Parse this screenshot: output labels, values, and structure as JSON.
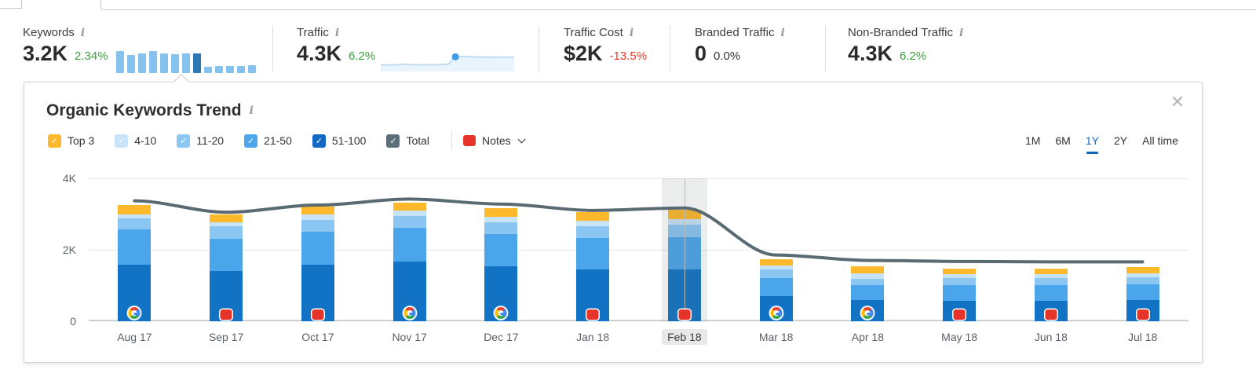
{
  "icons": {
    "info": "i",
    "check": "✓",
    "close": "✕"
  },
  "metrics": [
    {
      "label": "Keywords",
      "value": "3.2K",
      "delta": "2.34%",
      "delta_color": "green"
    },
    {
      "label": "Traffic",
      "value": "4.3K",
      "delta": "6.2%",
      "delta_color": "green"
    },
    {
      "label": "Traffic Cost",
      "value": "$2K",
      "delta": "-13.5%",
      "delta_color": "red"
    },
    {
      "label": "Branded Traffic",
      "value": "0",
      "delta": "0.0%",
      "delta_color": "neutral"
    },
    {
      "label": "Non-Branded Traffic",
      "value": "4.3K",
      "delta": "6.2%",
      "delta_color": "green"
    }
  ],
  "keywords_sparkline": {
    "values": [
      28,
      23,
      25,
      28,
      25,
      24,
      25,
      25,
      8,
      9,
      9,
      9,
      10
    ],
    "selected_index": 7,
    "bar_color": "#85C3EE",
    "selected_color": "#2E77B5"
  },
  "traffic_sparkline": {
    "points": [
      [
        0,
        0.25
      ],
      [
        0.1,
        0.24
      ],
      [
        0.18,
        0.28
      ],
      [
        0.26,
        0.25
      ],
      [
        0.44,
        0.26
      ],
      [
        0.5,
        0.28
      ],
      [
        0.56,
        0.64
      ],
      [
        0.62,
        0.66
      ],
      [
        0.72,
        0.63
      ],
      [
        1,
        0.62
      ]
    ],
    "dot": [
      0.56,
      0.64
    ],
    "line_color": "#BFDCF3",
    "fill_color": "#E9F4FC",
    "dot_color": "#3E9BE9"
  },
  "panel": {
    "title": "Organic Keywords Trend",
    "legend": [
      {
        "label": "Top 3",
        "color": "#FDB82C",
        "checked": true
      },
      {
        "label": "4-10",
        "color": "#C9E4F8",
        "checked": true
      },
      {
        "label": "11-20",
        "color": "#8BC7F0",
        "checked": true
      },
      {
        "label": "21-50",
        "color": "#4DA6EC",
        "checked": true
      },
      {
        "label": "51-100",
        "color": "#1268C3",
        "checked": true
      },
      {
        "label": "Total",
        "color": "#5C6E77",
        "checked": true
      }
    ],
    "notes": {
      "label": "Notes"
    },
    "ranges": [
      {
        "label": "1M",
        "active": false
      },
      {
        "label": "6M",
        "active": false
      },
      {
        "label": "1Y",
        "active": true
      },
      {
        "label": "2Y",
        "active": false
      },
      {
        "label": "All time",
        "active": false
      }
    ]
  },
  "chart_data": {
    "type": "bar",
    "stacked": true,
    "title": "Organic Keywords Trend",
    "categories": [
      "Aug 17",
      "Sep 17",
      "Oct 17",
      "Nov 17",
      "Dec 17",
      "Jan 18",
      "Feb 18",
      "Mar 18",
      "Apr 18",
      "May 18",
      "Jun 18",
      "Jul 18"
    ],
    "series": [
      {
        "name": "51-100",
        "color": "#1273C4",
        "values": [
          1580,
          1400,
          1580,
          1670,
          1540,
          1450,
          1450,
          700,
          590,
          570,
          570,
          600
        ]
      },
      {
        "name": "21-50",
        "color": "#4AA5EA",
        "values": [
          1000,
          900,
          920,
          950,
          900,
          880,
          900,
          500,
          420,
          450,
          450,
          430
        ]
      },
      {
        "name": "11-20",
        "color": "#8AC6F1",
        "values": [
          290,
          350,
          330,
          330,
          340,
          330,
          360,
          250,
          180,
          200,
          200,
          200
        ]
      },
      {
        "name": "4-10",
        "color": "#C6E3F8",
        "values": [
          130,
          120,
          150,
          140,
          150,
          150,
          150,
          120,
          150,
          100,
          100,
          120
        ]
      },
      {
        "name": "Top 3",
        "color": "#FDB82C",
        "values": [
          260,
          220,
          240,
          240,
          240,
          240,
          260,
          160,
          200,
          150,
          150,
          170
        ]
      }
    ],
    "line_series": {
      "name": "Total",
      "color": "#5A6A73",
      "values": [
        3370,
        3050,
        3250,
        3420,
        3280,
        3100,
        3170,
        1850,
        1700,
        1670,
        1660,
        1660
      ]
    },
    "markers": [
      "google",
      "note",
      "note",
      "google",
      "google",
      "note",
      "note",
      "google",
      "google",
      "note",
      "note",
      "note"
    ],
    "highlighted_category": "Feb 18",
    "ylim": [
      0,
      4000
    ],
    "yticks": [
      4000,
      2000,
      0
    ],
    "ytick_labels": [
      "4K",
      "2K",
      "0"
    ],
    "grid": true,
    "legend_position": "top"
  }
}
